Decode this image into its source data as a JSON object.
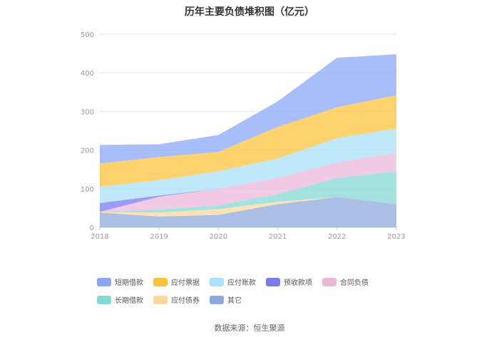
{
  "source_text": "数据来源：恒生聚源",
  "chart_data": {
    "type": "area",
    "stacked": true,
    "title": "历年主要负债堆积图（亿元）",
    "xlabel": "",
    "ylabel": "",
    "categories": [
      "2018",
      "2019",
      "2020",
      "2021",
      "2022",
      "2023"
    ],
    "ylim": [
      0,
      500
    ],
    "yticks": [
      0,
      100,
      200,
      300,
      400,
      500
    ],
    "grid": true,
    "legend_position": "bottom",
    "series": [
      {
        "name": "其它",
        "color": "#8faadc",
        "values": [
          38,
          28,
          32,
          60,
          78,
          60
        ]
      },
      {
        "name": "应付债券",
        "color": "#fdd79b",
        "values": [
          2,
          10,
          15,
          6,
          0,
          0
        ]
      },
      {
        "name": "长期借款",
        "color": "#86d8d4",
        "values": [
          0,
          8,
          10,
          20,
          50,
          85
        ]
      },
      {
        "name": "合同负债",
        "color": "#ecb8da",
        "values": [
          0,
          33,
          43,
          42,
          40,
          48
        ]
      },
      {
        "name": "预收款项",
        "color": "#7b7bf0",
        "values": [
          23,
          3,
          0,
          0,
          0,
          0
        ]
      },
      {
        "name": "应付账款",
        "color": "#a9e2fa",
        "values": [
          42,
          40,
          45,
          50,
          63,
          63
        ]
      },
      {
        "name": "应付票据",
        "color": "#fec43f",
        "values": [
          60,
          60,
          50,
          82,
          80,
          86
        ]
      },
      {
        "name": "短期借款",
        "color": "#89a8f8",
        "values": [
          48,
          33,
          44,
          66,
          128,
          106
        ]
      }
    ],
    "legend_order": [
      "短期借款",
      "应付票据",
      "应付账款",
      "预收款项",
      "合同负债",
      "长期借款",
      "应付债券",
      "其它"
    ]
  }
}
